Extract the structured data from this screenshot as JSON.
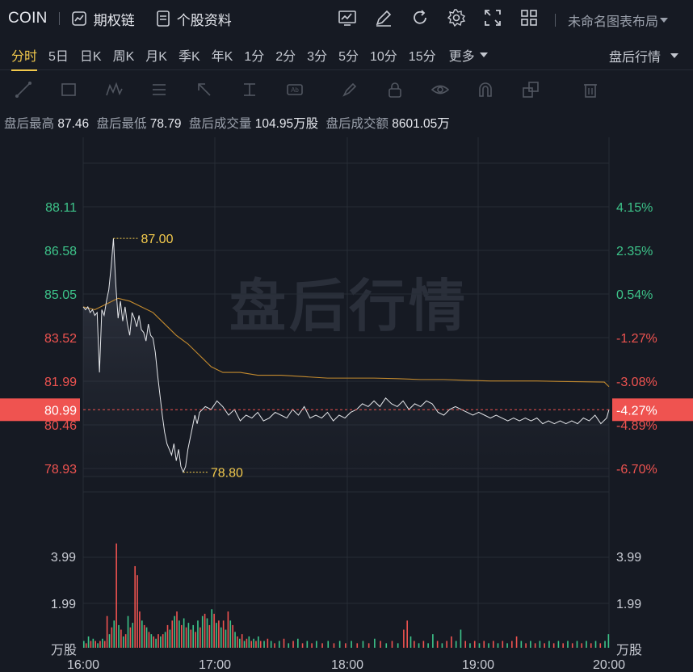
{
  "symbol": "COIN",
  "top": {
    "options_label": "期权链",
    "profile_label": "个股资料",
    "layout_label": "未命名图表布局"
  },
  "periods": [
    "分时",
    "5日",
    "日K",
    "周K",
    "月K",
    "季K",
    "年K",
    "1分",
    "2分",
    "3分",
    "5分",
    "10分",
    "15分"
  ],
  "more_label": "更多",
  "after_label": "盘后行情",
  "stats": {
    "high_label": "盘后最高",
    "high": "87.46",
    "low_label": "盘后最低",
    "low": "78.79",
    "vol_label": "盘后成交量",
    "vol": "104.95万股",
    "amt_label": "盘后成交额",
    "amt": "8601.05万"
  },
  "watermark": "盘后行情",
  "colors": {
    "up": "#3dc48a",
    "down": "#ef5350",
    "accent": "#f2c94c",
    "avg": "#c38a2e"
  },
  "chart_data": {
    "type": "line",
    "x_ticks": [
      "16:00",
      "17:00",
      "18:00",
      "19:00",
      "20:00"
    ],
    "y_left_ticks": [
      "88.11",
      "86.58",
      "85.05",
      "83.52",
      "81.99",
      "80.46",
      "78.93"
    ],
    "y_right_ticks": [
      "4.15%",
      "2.35%",
      "0.54%",
      "-1.27%",
      "-3.08%",
      "-4.89%",
      "-6.70%"
    ],
    "ylim": [
      78.93,
      88.11
    ],
    "current_price": "80.99",
    "current_pct": "-4.27%",
    "max_label": "87.00",
    "min_label": "78.80",
    "vol_ticks": [
      "3.99",
      "1.99"
    ],
    "vol_unit": "万股",
    "price": [
      [
        0,
        84.6
      ],
      [
        2,
        84.5
      ],
      [
        4,
        84.6
      ],
      [
        6,
        84.4
      ],
      [
        8,
        84.5
      ],
      [
        10,
        84.3
      ],
      [
        12,
        84.4
      ],
      [
        14,
        82.3
      ],
      [
        16,
        84.5
      ],
      [
        18,
        84.3
      ],
      [
        20,
        84.8
      ],
      [
        22,
        85.2
      ],
      [
        24,
        86.0
      ],
      [
        26,
        87.0
      ],
      [
        28,
        85.4
      ],
      [
        30,
        84.2
      ],
      [
        32,
        84.8
      ],
      [
        34,
        84.1
      ],
      [
        36,
        84.6
      ],
      [
        38,
        84.0
      ],
      [
        40,
        83.6
      ],
      [
        42,
        84.4
      ],
      [
        44,
        84.2
      ],
      [
        46,
        83.9
      ],
      [
        48,
        84.3
      ],
      [
        50,
        83.8
      ],
      [
        52,
        83.7
      ],
      [
        54,
        83.4
      ],
      [
        56,
        84.0
      ],
      [
        58,
        83.6
      ],
      [
        60,
        83.5
      ],
      [
        62,
        83.0
      ],
      [
        64,
        82.2
      ],
      [
        66,
        81.5
      ],
      [
        68,
        80.8
      ],
      [
        70,
        80.2
      ],
      [
        72,
        79.8
      ],
      [
        74,
        79.6
      ],
      [
        76,
        79.4
      ],
      [
        78,
        79.8
      ],
      [
        80,
        79.2
      ],
      [
        82,
        79.6
      ],
      [
        84,
        79.0
      ],
      [
        86,
        78.8
      ],
      [
        88,
        79.0
      ],
      [
        90,
        79.6
      ],
      [
        92,
        80.0
      ],
      [
        94,
        80.4
      ],
      [
        96,
        80.8
      ],
      [
        98,
        80.5
      ],
      [
        100,
        80.9
      ],
      [
        105,
        81.1
      ],
      [
        110,
        81.0
      ],
      [
        115,
        81.3
      ],
      [
        120,
        81.1
      ],
      [
        125,
        80.8
      ],
      [
        130,
        81.0
      ],
      [
        135,
        80.6
      ],
      [
        140,
        80.8
      ],
      [
        145,
        80.7
      ],
      [
        150,
        80.9
      ],
      [
        155,
        80.6
      ],
      [
        160,
        80.7
      ],
      [
        165,
        80.9
      ],
      [
        170,
        80.8
      ],
      [
        175,
        80.7
      ],
      [
        180,
        81.0
      ],
      [
        185,
        80.8
      ],
      [
        190,
        81.1
      ],
      [
        195,
        80.7
      ],
      [
        200,
        80.8
      ],
      [
        205,
        80.7
      ],
      [
        210,
        80.9
      ],
      [
        215,
        80.6
      ],
      [
        220,
        80.8
      ],
      [
        225,
        80.7
      ],
      [
        230,
        80.9
      ],
      [
        235,
        81.0
      ],
      [
        240,
        81.2
      ],
      [
        245,
        81.1
      ],
      [
        250,
        81.3
      ],
      [
        255,
        81.1
      ],
      [
        260,
        81.4
      ],
      [
        265,
        81.2
      ],
      [
        270,
        81.1
      ],
      [
        275,
        81.3
      ],
      [
        280,
        81.0
      ],
      [
        285,
        81.2
      ],
      [
        290,
        81.1
      ],
      [
        295,
        81.3
      ],
      [
        300,
        81.2
      ],
      [
        305,
        80.9
      ],
      [
        310,
        80.8
      ],
      [
        315,
        81.0
      ],
      [
        320,
        81.1
      ],
      [
        325,
        81.0
      ],
      [
        330,
        80.9
      ],
      [
        335,
        80.8
      ],
      [
        340,
        80.9
      ],
      [
        345,
        80.8
      ],
      [
        350,
        80.7
      ],
      [
        355,
        80.8
      ],
      [
        360,
        80.7
      ],
      [
        365,
        80.6
      ],
      [
        370,
        80.7
      ],
      [
        375,
        80.6
      ],
      [
        380,
        80.7
      ],
      [
        385,
        80.6
      ],
      [
        390,
        80.7
      ],
      [
        395,
        80.5
      ],
      [
        400,
        80.6
      ],
      [
        405,
        80.5
      ],
      [
        410,
        80.6
      ],
      [
        415,
        80.5
      ],
      [
        420,
        80.6
      ],
      [
        425,
        80.5
      ],
      [
        430,
        80.7
      ],
      [
        435,
        80.6
      ],
      [
        440,
        80.8
      ],
      [
        445,
        80.5
      ],
      [
        450,
        80.7
      ],
      [
        452,
        81.0
      ]
    ],
    "avg": [
      [
        0,
        84.6
      ],
      [
        10,
        84.5
      ],
      [
        20,
        84.7
      ],
      [
        30,
        84.9
      ],
      [
        40,
        84.8
      ],
      [
        50,
        84.6
      ],
      [
        60,
        84.4
      ],
      [
        70,
        84.0
      ],
      [
        80,
        83.6
      ],
      [
        90,
        83.3
      ],
      [
        100,
        82.9
      ],
      [
        110,
        82.5
      ],
      [
        120,
        82.3
      ],
      [
        135,
        82.3
      ],
      [
        150,
        82.2
      ],
      [
        170,
        82.2
      ],
      [
        190,
        82.15
      ],
      [
        210,
        82.1
      ],
      [
        230,
        82.1
      ],
      [
        250,
        82.1
      ],
      [
        270,
        82.08
      ],
      [
        290,
        82.05
      ],
      [
        310,
        82.05
      ],
      [
        330,
        82.02
      ],
      [
        350,
        82.0
      ],
      [
        370,
        82.0
      ],
      [
        390,
        82.0
      ],
      [
        410,
        81.98
      ],
      [
        430,
        81.97
      ],
      [
        448,
        81.96
      ],
      [
        452,
        81.8
      ]
    ],
    "volume": [
      [
        0,
        0.3,
        1
      ],
      [
        2,
        0.2,
        0
      ],
      [
        4,
        0.5,
        1
      ],
      [
        6,
        0.3,
        0
      ],
      [
        8,
        0.4,
        1
      ],
      [
        10,
        0.3,
        0
      ],
      [
        12,
        0.2,
        1
      ],
      [
        14,
        0.3,
        0
      ],
      [
        16,
        0.4,
        1
      ],
      [
        18,
        0.3,
        0
      ],
      [
        20,
        1.4,
        0
      ],
      [
        22,
        0.6,
        1
      ],
      [
        24,
        0.9,
        0
      ],
      [
        26,
        1.2,
        1
      ],
      [
        28,
        4.6,
        0
      ],
      [
        30,
        1.0,
        1
      ],
      [
        32,
        0.8,
        0
      ],
      [
        34,
        0.5,
        1
      ],
      [
        36,
        0.6,
        0
      ],
      [
        38,
        1.4,
        1
      ],
      [
        40,
        0.9,
        0
      ],
      [
        42,
        1.1,
        1
      ],
      [
        44,
        3.6,
        0
      ],
      [
        46,
        3.2,
        0
      ],
      [
        48,
        1.6,
        0
      ],
      [
        50,
        1.2,
        1
      ],
      [
        52,
        1.0,
        0
      ],
      [
        54,
        0.9,
        1
      ],
      [
        56,
        0.7,
        0
      ],
      [
        58,
        0.6,
        1
      ],
      [
        60,
        0.5,
        0
      ],
      [
        62,
        0.4,
        1
      ],
      [
        64,
        0.6,
        0
      ],
      [
        66,
        0.5,
        1
      ],
      [
        68,
        0.6,
        0
      ],
      [
        70,
        0.7,
        1
      ],
      [
        72,
        1.0,
        0
      ],
      [
        74,
        0.8,
        1
      ],
      [
        76,
        1.2,
        0
      ],
      [
        78,
        1.4,
        1
      ],
      [
        80,
        1.6,
        0
      ],
      [
        82,
        1.2,
        1
      ],
      [
        84,
        1.0,
        0
      ],
      [
        86,
        1.3,
        1
      ],
      [
        88,
        0.9,
        0
      ],
      [
        90,
        1.1,
        1
      ],
      [
        92,
        0.8,
        0
      ],
      [
        94,
        1.0,
        1
      ],
      [
        96,
        0.7,
        0
      ],
      [
        98,
        1.2,
        1
      ],
      [
        100,
        0.9,
        0
      ],
      [
        102,
        1.4,
        1
      ],
      [
        104,
        1.5,
        0
      ],
      [
        106,
        1.3,
        1
      ],
      [
        108,
        1.0,
        0
      ],
      [
        110,
        1.7,
        1
      ],
      [
        112,
        1.5,
        0
      ],
      [
        114,
        1.1,
        1
      ],
      [
        116,
        1.2,
        0
      ],
      [
        118,
        0.9,
        1
      ],
      [
        120,
        1.2,
        0
      ],
      [
        122,
        0.8,
        1
      ],
      [
        124,
        1.6,
        0
      ],
      [
        126,
        1.2,
        1
      ],
      [
        128,
        1.0,
        0
      ],
      [
        130,
        0.7,
        1
      ],
      [
        132,
        0.5,
        0
      ],
      [
        134,
        0.4,
        1
      ],
      [
        136,
        0.6,
        0
      ],
      [
        138,
        0.3,
        1
      ],
      [
        140,
        0.4,
        0
      ],
      [
        142,
        0.5,
        1
      ],
      [
        144,
        0.3,
        0
      ],
      [
        146,
        0.4,
        1
      ],
      [
        148,
        0.3,
        0
      ],
      [
        150,
        0.5,
        1
      ],
      [
        152,
        0.3,
        0
      ],
      [
        155,
        0.3,
        1
      ],
      [
        158,
        0.4,
        0
      ],
      [
        161,
        0.3,
        1
      ],
      [
        164,
        0.2,
        0
      ],
      [
        168,
        0.3,
        1
      ],
      [
        172,
        0.4,
        0
      ],
      [
        176,
        0.2,
        1
      ],
      [
        180,
        0.3,
        0
      ],
      [
        184,
        0.4,
        1
      ],
      [
        188,
        0.2,
        0
      ],
      [
        192,
        0.3,
        1
      ],
      [
        196,
        0.2,
        0
      ],
      [
        200,
        0.3,
        1
      ],
      [
        205,
        0.2,
        0
      ],
      [
        210,
        0.3,
        1
      ],
      [
        215,
        0.2,
        0
      ],
      [
        220,
        0.3,
        1
      ],
      [
        225,
        0.2,
        0
      ],
      [
        230,
        0.3,
        1
      ],
      [
        235,
        0.2,
        0
      ],
      [
        240,
        0.3,
        1
      ],
      [
        245,
        0.2,
        0
      ],
      [
        250,
        0.4,
        1
      ],
      [
        255,
        0.3,
        0
      ],
      [
        260,
        0.2,
        1
      ],
      [
        265,
        0.3,
        0
      ],
      [
        270,
        0.2,
        1
      ],
      [
        275,
        0.8,
        0
      ],
      [
        278,
        1.2,
        0
      ],
      [
        281,
        0.5,
        1
      ],
      [
        284,
        0.3,
        0
      ],
      [
        288,
        0.2,
        1
      ],
      [
        292,
        0.3,
        0
      ],
      [
        296,
        0.2,
        1
      ],
      [
        300,
        0.6,
        1
      ],
      [
        304,
        0.3,
        0
      ],
      [
        308,
        0.2,
        1
      ],
      [
        312,
        0.3,
        0
      ],
      [
        316,
        0.5,
        0
      ],
      [
        320,
        0.3,
        1
      ],
      [
        324,
        0.8,
        1
      ],
      [
        328,
        0.3,
        0
      ],
      [
        332,
        0.2,
        1
      ],
      [
        336,
        0.3,
        0
      ],
      [
        340,
        0.2,
        1
      ],
      [
        344,
        0.3,
        0
      ],
      [
        348,
        0.2,
        1
      ],
      [
        352,
        0.3,
        0
      ],
      [
        356,
        0.2,
        1
      ],
      [
        360,
        0.3,
        0
      ],
      [
        364,
        0.2,
        1
      ],
      [
        368,
        0.3,
        0
      ],
      [
        372,
        0.5,
        0
      ],
      [
        376,
        0.3,
        1
      ],
      [
        380,
        0.2,
        0
      ],
      [
        384,
        0.3,
        1
      ],
      [
        388,
        0.2,
        0
      ],
      [
        392,
        0.3,
        1
      ],
      [
        396,
        0.2,
        0
      ],
      [
        400,
        0.3,
        1
      ],
      [
        404,
        0.2,
        0
      ],
      [
        408,
        0.3,
        1
      ],
      [
        412,
        0.2,
        0
      ],
      [
        416,
        0.3,
        1
      ],
      [
        420,
        0.2,
        0
      ],
      [
        424,
        0.3,
        1
      ],
      [
        428,
        0.2,
        0
      ],
      [
        432,
        0.3,
        1
      ],
      [
        436,
        0.2,
        0
      ],
      [
        440,
        0.3,
        1
      ],
      [
        444,
        0.2,
        0
      ],
      [
        448,
        0.3,
        1
      ],
      [
        451,
        0.6,
        1
      ]
    ]
  }
}
